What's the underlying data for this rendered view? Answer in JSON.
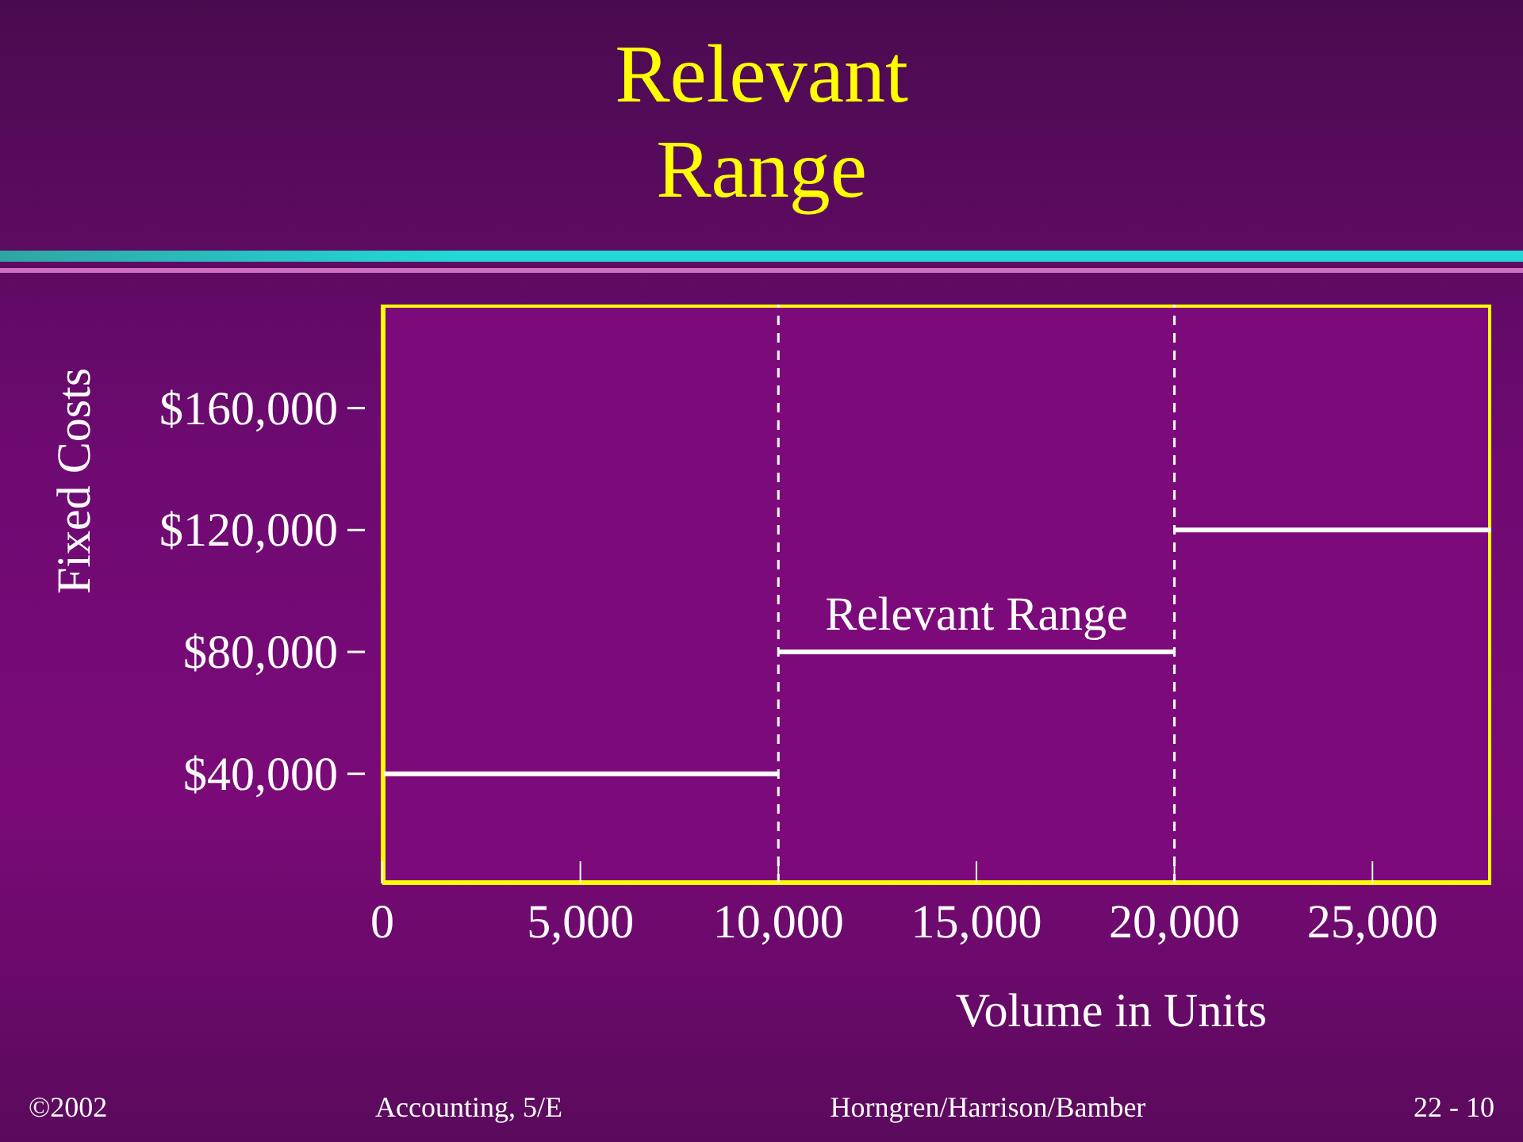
{
  "chart_data": {
    "type": "line",
    "title": "Relevant Range",
    "xlabel": "Volume in Units",
    "ylabel": "Fixed Costs",
    "series": [
      {
        "color": "#ffffff",
        "x": [
          0,
          10000
        ],
        "values": [
          40000,
          40000
        ]
      },
      {
        "color": "#ffffff",
        "x": [
          10000,
          20000
        ],
        "values": [
          80000,
          80000
        ]
      },
      {
        "color": "#ffffff",
        "x": [
          20000,
          28000
        ],
        "values": [
          120000,
          120000
        ]
      }
    ],
    "xlim": [
      0,
      28000
    ],
    "xticks": [
      {
        "value": 0,
        "label": "0"
      },
      {
        "value": 5000,
        "label": "5,000"
      },
      {
        "value": 10000,
        "label": "10,000"
      },
      {
        "value": 15000,
        "label": "15,000"
      },
      {
        "value": 20000,
        "label": "20,000"
      },
      {
        "value": 25000,
        "label": "25,000"
      }
    ],
    "ylim": [
      4000,
      194000
    ],
    "yticks": [
      {
        "value": 40000,
        "label": "$40,000"
      },
      {
        "value": 80000,
        "label": "$80,000"
      },
      {
        "value": 120000,
        "label": "$120,000"
      },
      {
        "value": 160000,
        "label": "$160,000"
      }
    ],
    "ref_lines": [
      {
        "axis": "x",
        "value": 10000,
        "color": "#ffffff",
        "line_style": "dashed"
      },
      {
        "axis": "x",
        "value": 20000,
        "color": "#ffffff",
        "line_style": "dashed"
      }
    ],
    "annotations": [
      {
        "text": "Relevant Range",
        "x": 15000,
        "y": 80000
      },
      "©2002",
      "Accounting, 5/E",
      "Horngren/Harrison/Bamber",
      "22 - 10"
    ]
  }
}
